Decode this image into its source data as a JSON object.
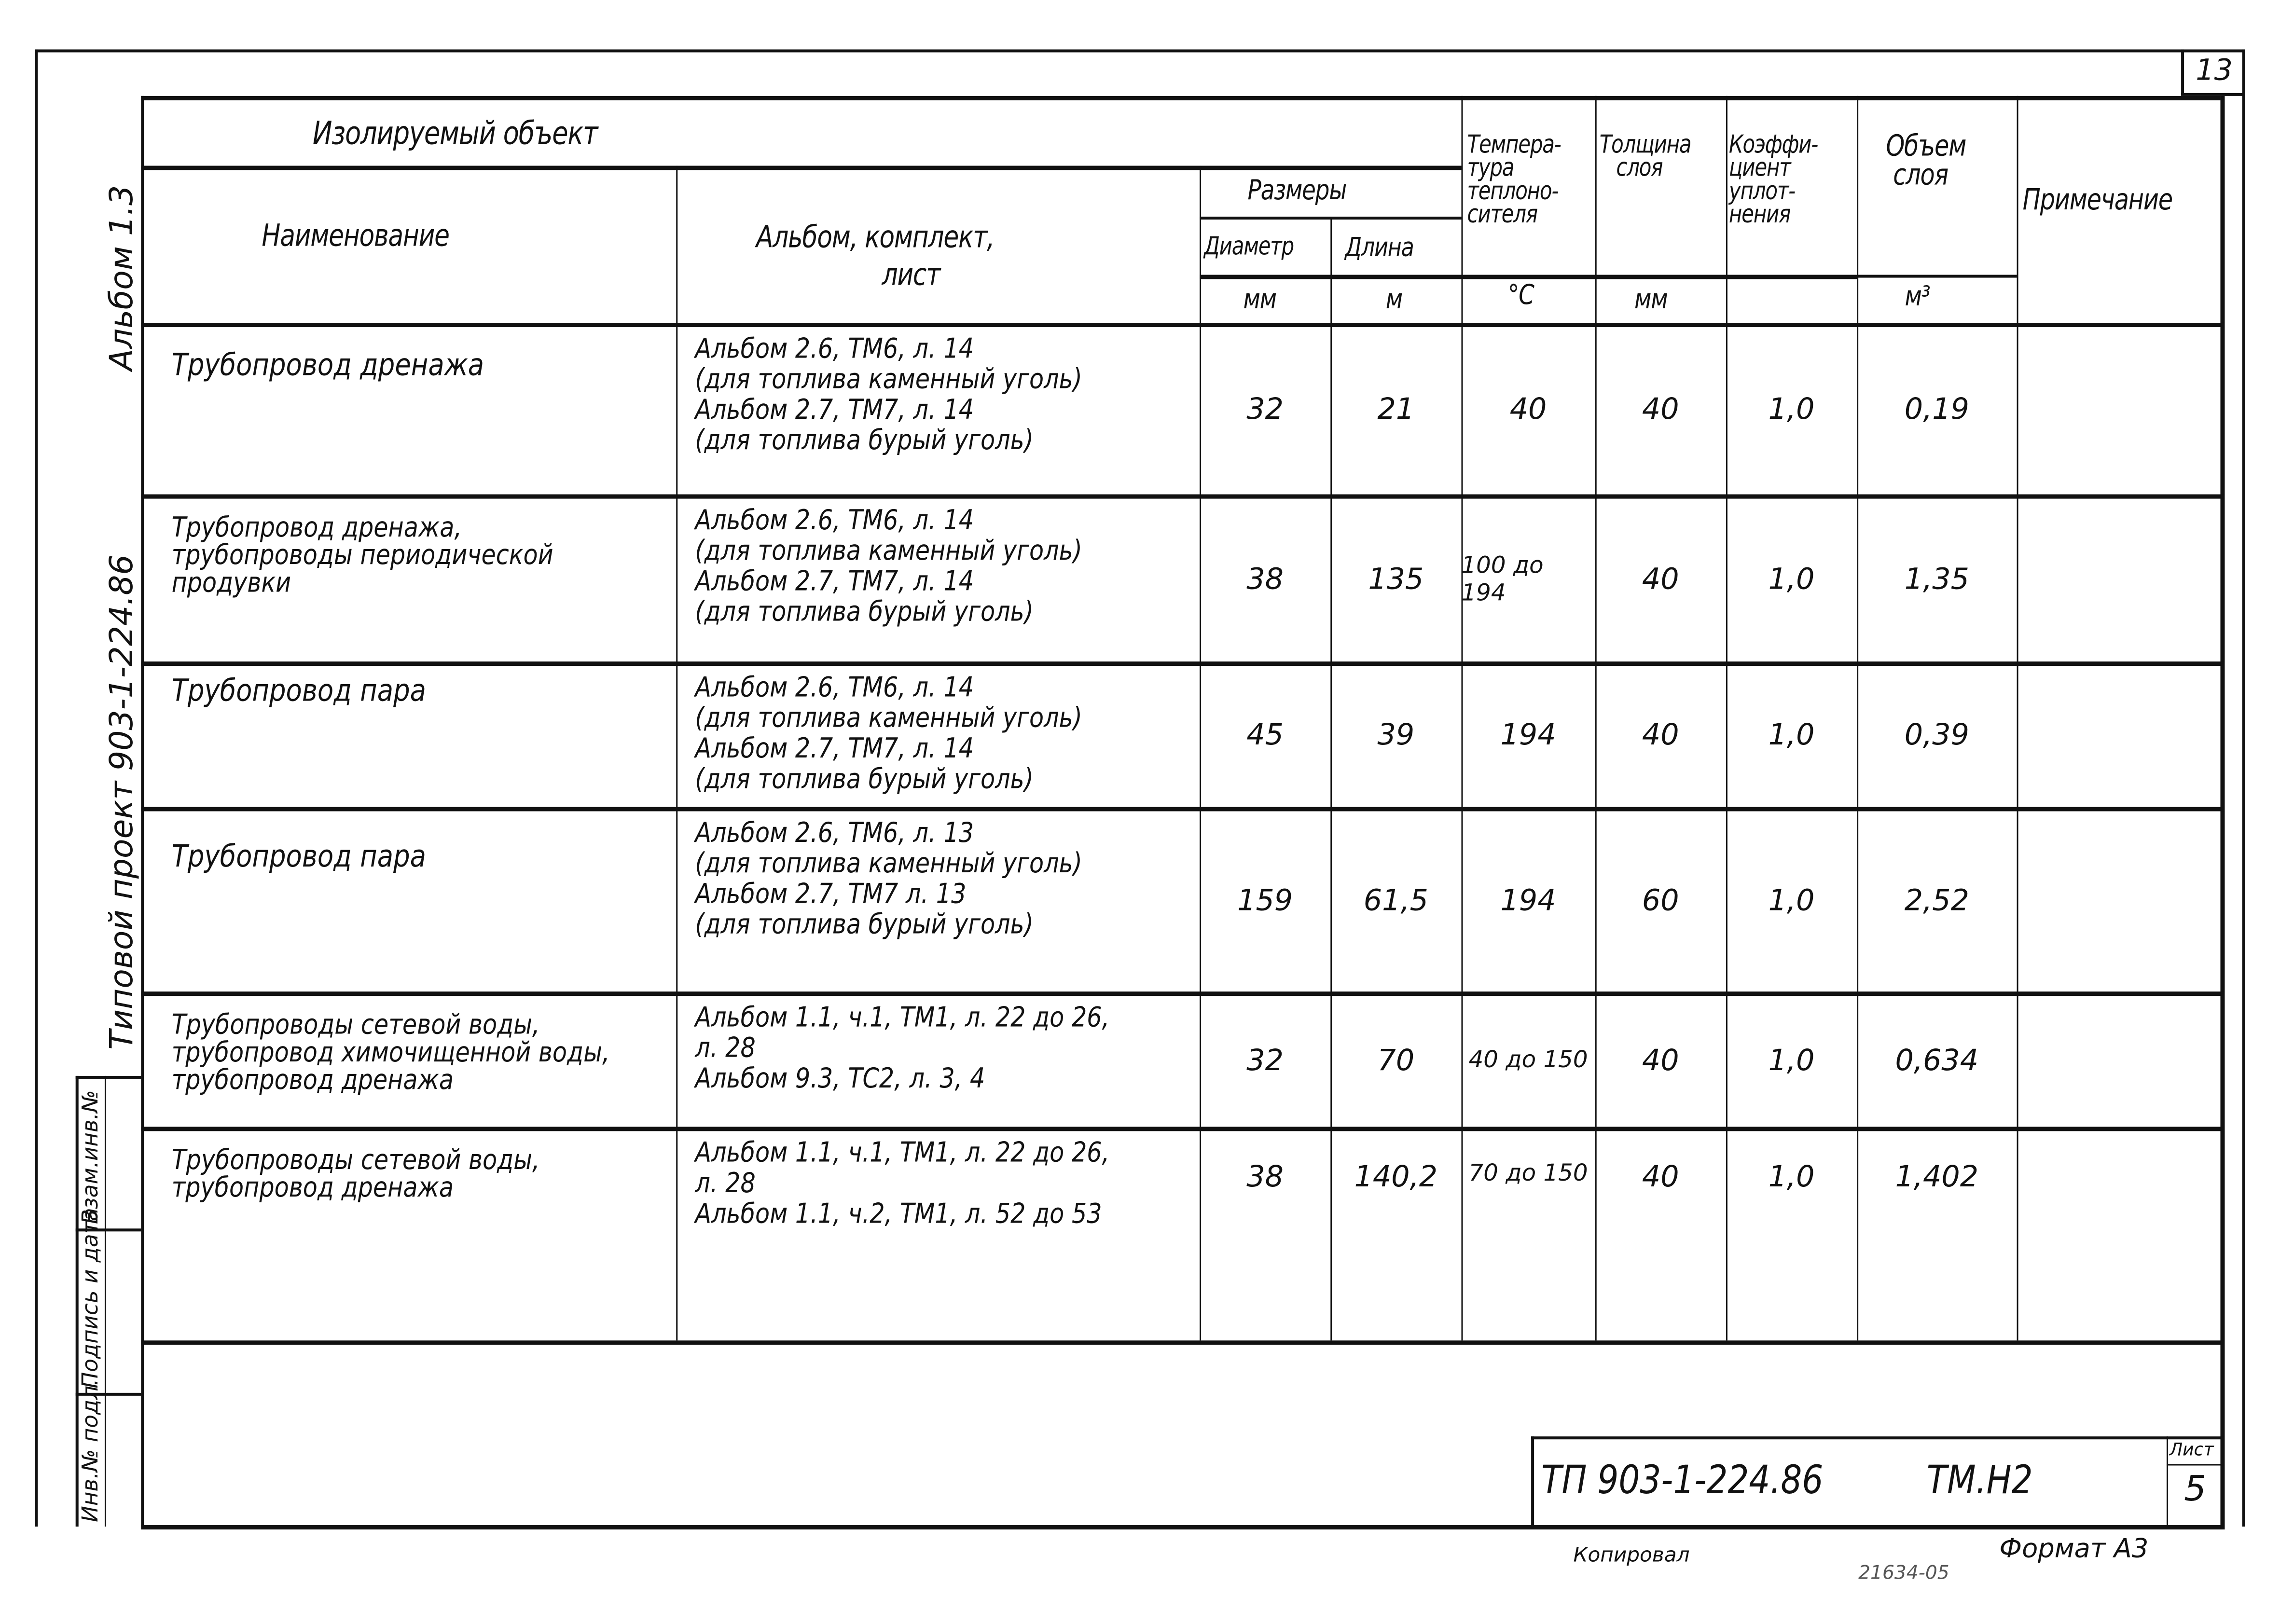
{
  "sheet_number": "13",
  "left_margin": {
    "album": "Альбом 1.3",
    "project": "Типовой проект 903-1-224.86",
    "stamp_fields": [
      "Взам.инв.№",
      "Подпись и дата",
      "Инв.№ подл."
    ]
  },
  "table": {
    "header": {
      "object_group": "Изолируемый объект",
      "name": "Наименование",
      "album": [
        "Альбом, комплект,",
        "лист"
      ],
      "sizes": "Размеры",
      "diameter": "Диаметр",
      "length": "Длина",
      "temperature": [
        "Темпера-",
        "тура",
        "теплоно-",
        "сителя"
      ],
      "thickness": [
        "Толщина",
        "слоя"
      ],
      "coefficient": [
        "Коэффи-",
        "циент",
        "уплот-",
        "нения"
      ],
      "volume": [
        "Объем",
        "слоя"
      ],
      "note": "Примечание",
      "units": {
        "diameter": "мм",
        "length": "м",
        "temperature": "°C",
        "thickness": "мм",
        "volume": "м³"
      }
    },
    "rows": [
      {
        "name": [
          "Трубопровод дренажа"
        ],
        "album": [
          "Альбом 2.6, ТМ6, л. 14",
          "(для топлива каменный уголь)",
          "Альбом 2.7, ТМ7, л. 14",
          "(для топлива бурый уголь)"
        ],
        "diameter": "32",
        "length": "21",
        "temperature": "40",
        "thickness": "40",
        "coefficient": "1,0",
        "volume": "0,19",
        "note": ""
      },
      {
        "name": [
          "Трубопровод дренажа,",
          "трубопроводы периодической",
          "продувки"
        ],
        "album": [
          "Альбом 2.6, ТМ6, л. 14",
          "(для топлива каменный уголь)",
          "Альбом 2.7, ТМ7, л. 14",
          "(для топлива бурый уголь)"
        ],
        "diameter": "38",
        "length": "135",
        "temperature": "100 до 194",
        "thickness": "40",
        "coefficient": "1,0",
        "volume": "1,35",
        "note": ""
      },
      {
        "name": [
          "Трубопровод пара"
        ],
        "album": [
          "Альбом 2.6, ТМ6, л. 14",
          "(для топлива каменный уголь)",
          "Альбом 2.7, ТМ7, л. 14",
          "(для топлива бурый уголь)"
        ],
        "diameter": "45",
        "length": "39",
        "temperature": "194",
        "thickness": "40",
        "coefficient": "1,0",
        "volume": "0,39",
        "note": ""
      },
      {
        "name": [
          "Трубопровод пара"
        ],
        "album": [
          "Альбом 2.6, ТМ6, л. 13",
          "(для топлива каменный уголь)",
          "Альбом 2.7, ТМ7 л. 13",
          "(для топлива бурый уголь)"
        ],
        "diameter": "159",
        "length": "61,5",
        "temperature": "194",
        "thickness": "60",
        "coefficient": "1,0",
        "volume": "2,52",
        "note": ""
      },
      {
        "name": [
          "Трубопроводы сетевой воды,",
          "трубопровод химочищенной воды,",
          "трубопровод дренажа"
        ],
        "album": [
          "Альбом 1.1, ч.1, ТМ1, л. 22 до 26,",
          "л. 28",
          "Альбом 9.3, ТС2, л. 3, 4"
        ],
        "diameter": "32",
        "length": "70",
        "temperature": "40 до 150",
        "thickness": "40",
        "coefficient": "1,0",
        "volume": "0,634",
        "note": ""
      },
      {
        "name": [
          "Трубопроводы сетевой воды,",
          "трубопровод дренажа"
        ],
        "album": [
          "Альбом 1.1, ч.1, ТМ1, л. 22 до 26,",
          "л. 28",
          "Альбом 1.1, ч.2, ТМ1, л. 52 до 53"
        ],
        "diameter": "38",
        "length": "140,2",
        "temperature": "70 до 150",
        "thickness": "40",
        "coefficient": "1,0",
        "volume": "1,402",
        "note": ""
      }
    ]
  },
  "title_block": {
    "code": "ТП 903-1-224.86",
    "mark": "ТМ.Н2",
    "sheet_label": "Лист",
    "sheet": "5"
  },
  "footer": {
    "copied": "Копировал",
    "order": "21634-05",
    "format": "Формат А3"
  }
}
